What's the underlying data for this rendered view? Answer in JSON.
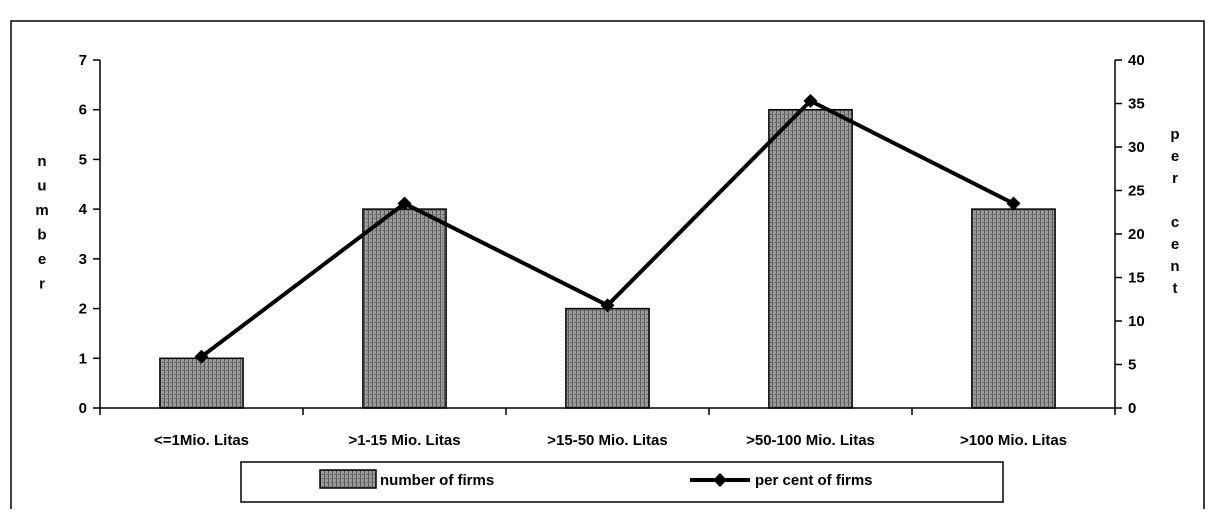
{
  "chart_data": {
    "type": "bar+line",
    "title": "",
    "categories": [
      "<=1Mio. Litas",
      ">1-15 Mio. Litas",
      ">15-50 Mio. Litas",
      ">50-100 Mio. Litas",
      ">100 Mio. Litas"
    ],
    "series": [
      {
        "name": "number of firms",
        "type": "bar",
        "axis": "left",
        "values": [
          1,
          4,
          2,
          6,
          4
        ]
      },
      {
        "name": "per cent of firms",
        "type": "line",
        "axis": "right",
        "values": [
          5.9,
          23.5,
          11.8,
          35.3,
          23.5
        ]
      }
    ],
    "y_left": {
      "label": "number",
      "ylim": [
        0,
        7
      ],
      "ticks": [
        "0",
        "1",
        "2",
        "3",
        "4",
        "5",
        "6",
        "7"
      ]
    },
    "y_right": {
      "label": "per cent",
      "ylim": [
        0,
        40
      ],
      "ticks": [
        "0",
        "5",
        "10",
        "15",
        "20",
        "25",
        "30",
        "35",
        "40"
      ]
    },
    "legend": {
      "placement": "bottom",
      "entries": [
        "number of firms",
        "per cent of firms"
      ]
    },
    "grid": false,
    "colors": {
      "bar_fill": "#8c8c8c",
      "bar_stroke": "#000000",
      "line": "#000000"
    }
  }
}
